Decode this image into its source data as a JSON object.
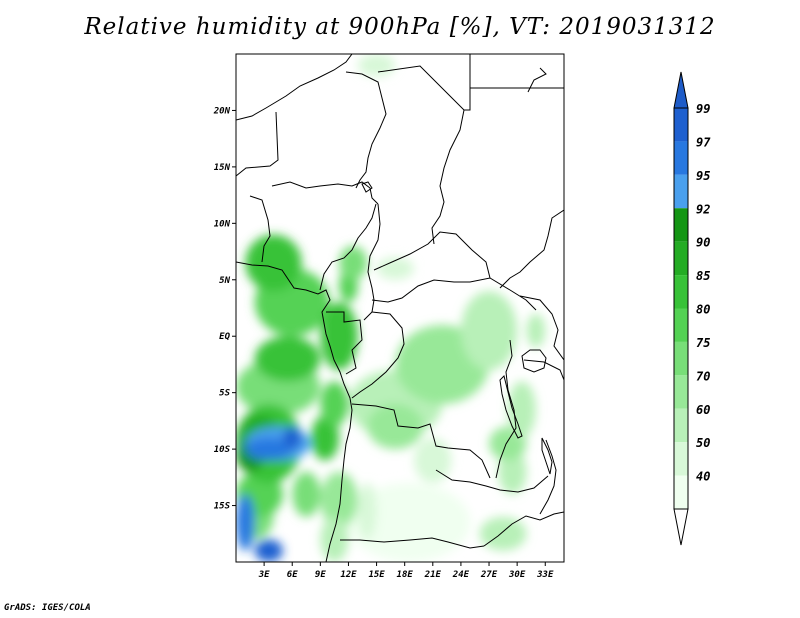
{
  "title": "Relative humidity at 900hPa [%], VT: 2019031312",
  "credit": "GrADS: IGES/COLA",
  "chart_data": {
    "type": "heatmap",
    "title": "Relative humidity at 900hPa [%], VT: 2019031312",
    "x_axis": {
      "range": [
        0,
        35
      ],
      "ticks": [
        {
          "value": 3,
          "label": "3E"
        },
        {
          "value": 6,
          "label": "6E"
        },
        {
          "value": 9,
          "label": "9E"
        },
        {
          "value": 12,
          "label": "12E"
        },
        {
          "value": 15,
          "label": "15E"
        },
        {
          "value": 18,
          "label": "18E"
        },
        {
          "value": 21,
          "label": "21E"
        },
        {
          "value": 24,
          "label": "24E"
        },
        {
          "value": 27,
          "label": "27E"
        },
        {
          "value": 30,
          "label": "30E"
        },
        {
          "value": 33,
          "label": "33E"
        }
      ]
    },
    "y_axis": {
      "range": [
        -20,
        25
      ],
      "ticks": [
        {
          "value": 20,
          "label": "20N"
        },
        {
          "value": 15,
          "label": "15N"
        },
        {
          "value": 10,
          "label": "10N"
        },
        {
          "value": 5,
          "label": "5N"
        },
        {
          "value": 0,
          "label": "EQ"
        },
        {
          "value": -5,
          "label": "5S"
        },
        {
          "value": -10,
          "label": "10S"
        },
        {
          "value": -15,
          "label": "15S"
        }
      ]
    },
    "colorbar": {
      "levels": [
        {
          "label": "99",
          "color": "#1e60d0"
        },
        {
          "label": "97",
          "color": "#2878e0"
        },
        {
          "label": "95",
          "color": "#4aa0ee"
        },
        {
          "label": "92",
          "color": "#149614"
        },
        {
          "label": "90",
          "color": "#24ac24"
        },
        {
          "label": "85",
          "color": "#38c238"
        },
        {
          "label": "80",
          "color": "#54d254"
        },
        {
          "label": "75",
          "color": "#78de78"
        },
        {
          "label": "70",
          "color": "#98e898"
        },
        {
          "label": "60",
          "color": "#b8f0b8"
        },
        {
          "label": "50",
          "color": "#d8f8d8"
        },
        {
          "label": "40",
          "color": "#f0fff0"
        }
      ],
      "top_arrow_color": "#1e5cc8",
      "bottom_arrow_color": "#ffffff"
    },
    "regions": [
      {
        "level": "40",
        "lon": [
          12,
          25
        ],
        "lat": [
          -20,
          -13
        ]
      },
      {
        "level": "60",
        "lon": [
          12,
          22
        ],
        "lat": [
          -9,
          -3
        ]
      },
      {
        "level": "70",
        "lon": [
          17,
          27
        ],
        "lat": [
          -6,
          1
        ]
      },
      {
        "level": "60",
        "lon": [
          24,
          30
        ],
        "lat": [
          -3,
          4
        ]
      },
      {
        "level": "60",
        "lon": [
          28,
          31
        ],
        "lat": [
          -14,
          -10
        ]
      },
      {
        "level": "70",
        "lon": [
          27,
          31
        ],
        "lat": [
          -11,
          -8
        ]
      },
      {
        "level": "50",
        "lon": [
          19,
          23
        ],
        "lat": [
          -13,
          -9
        ]
      },
      {
        "level": "75",
        "lon": [
          0,
          9
        ],
        "lat": [
          -7,
          -2
        ]
      },
      {
        "level": "80",
        "lon": [
          2,
          10
        ],
        "lat": [
          0,
          6
        ]
      },
      {
        "level": "85",
        "lon": [
          1,
          7
        ],
        "lat": [
          4,
          9
        ]
      },
      {
        "level": "75",
        "lon": [
          0,
          4
        ],
        "lat": [
          -18,
          -14
        ]
      },
      {
        "level": "80",
        "lon": [
          0,
          5
        ],
        "lat": [
          -16,
          -12
        ]
      },
      {
        "level": "85",
        "lon": [
          0,
          7
        ],
        "lat": [
          -13,
          -6
        ]
      },
      {
        "level": "90",
        "lon": [
          0,
          5
        ],
        "lat": [
          -11,
          -7
        ]
      },
      {
        "level": "92",
        "lon": [
          0,
          3
        ],
        "lat": [
          -12,
          -9
        ]
      },
      {
        "level": "95",
        "lon": [
          1,
          8
        ],
        "lat": [
          -11,
          -8
        ]
      },
      {
        "level": "97",
        "lon": [
          1,
          6
        ],
        "lat": [
          -11,
          -9
        ]
      },
      {
        "level": "99",
        "lon": [
          5,
          7
        ],
        "lat": [
          -10,
          -8
        ]
      },
      {
        "level": "97",
        "lon": [
          0,
          2
        ],
        "lat": [
          -19,
          -14
        ]
      },
      {
        "level": "99",
        "lon": [
          2,
          5
        ],
        "lat": [
          -20,
          -18
        ]
      },
      {
        "level": "85",
        "lon": [
          9,
          13
        ],
        "lat": [
          -3,
          3
        ]
      },
      {
        "level": "85",
        "lon": [
          2,
          9
        ],
        "lat": [
          -4,
          0
        ]
      },
      {
        "level": "70",
        "lon": [
          14,
          20
        ],
        "lat": [
          -10,
          -6
        ]
      },
      {
        "level": "60",
        "lon": [
          26,
          31
        ],
        "lat": [
          -19,
          -16
        ]
      },
      {
        "level": "50",
        "lon": [
          15,
          19
        ],
        "lat": [
          5,
          7
        ]
      },
      {
        "level": "50",
        "lon": [
          13,
          17
        ],
        "lat": [
          23,
          25
        ]
      },
      {
        "level": "60",
        "lon": [
          31,
          33
        ],
        "lat": [
          -1,
          2
        ]
      },
      {
        "level": "60",
        "lon": [
          29,
          32
        ],
        "lat": [
          -9,
          -4
        ]
      },
      {
        "level": "50",
        "lon": [
          13,
          15
        ],
        "lat": [
          -18,
          -13
        ]
      },
      {
        "level": "70",
        "lon": [
          9,
          13
        ],
        "lat": [
          -17,
          -12
        ]
      },
      {
        "level": "60",
        "lon": [
          9,
          12
        ],
        "lat": [
          -20,
          -16
        ]
      },
      {
        "level": "75",
        "lon": [
          6,
          9
        ],
        "lat": [
          -16,
          -12
        ]
      },
      {
        "level": "85",
        "lon": [
          8,
          11
        ],
        "lat": [
          -11,
          -7
        ]
      },
      {
        "level": "80",
        "lon": [
          9,
          12
        ],
        "lat": [
          -8,
          -4
        ]
      },
      {
        "level": "80",
        "lon": [
          11,
          13
        ],
        "lat": [
          3,
          6
        ]
      },
      {
        "level": "75",
        "lon": [
          11,
          14
        ],
        "lat": [
          5,
          8
        ]
      }
    ]
  }
}
